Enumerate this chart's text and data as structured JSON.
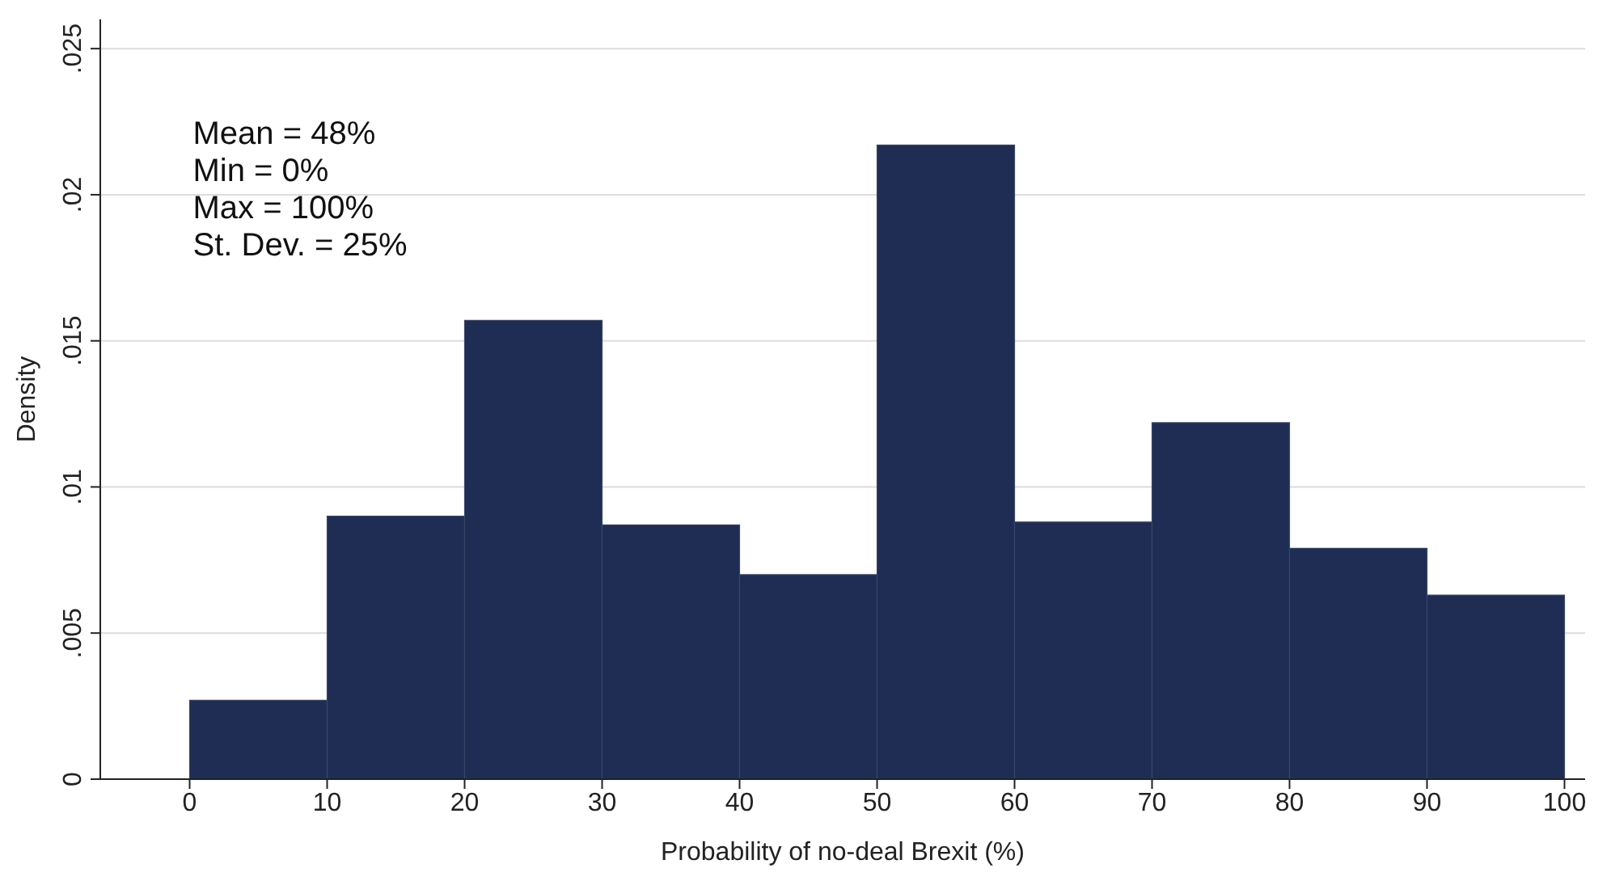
{
  "chart_data": {
    "type": "histogram",
    "xlabel": "Probability of no-deal Brexit (%)",
    "ylabel": "Density",
    "bins": [
      0,
      10,
      20,
      30,
      40,
      50,
      60,
      70,
      80,
      90,
      100
    ],
    "values": [
      0.0027,
      0.009,
      0.0157,
      0.0087,
      0.007,
      0.0217,
      0.0088,
      0.0122,
      0.0079,
      0.0063
    ],
    "color": "#1f2d54",
    "xlim": [
      -6.5,
      101.5
    ],
    "xticks": [
      0,
      10,
      20,
      30,
      40,
      50,
      60,
      70,
      80,
      90,
      100
    ],
    "ylim": [
      0,
      0.026
    ],
    "yticks": [
      0,
      {
        "value": 0.005,
        "label": ".005"
      },
      {
        "value": 0.01,
        "label": ".01"
      },
      {
        "value": 0.015,
        "label": ".015"
      },
      {
        "value": 0.02,
        "label": ".02"
      },
      {
        "value": 0.025,
        "label": ".025"
      }
    ],
    "grid": "y",
    "annotations": [
      "Mean = 48%",
      "Min = 0%",
      "Max = 100%",
      "St. Dev. = 25%"
    ]
  }
}
